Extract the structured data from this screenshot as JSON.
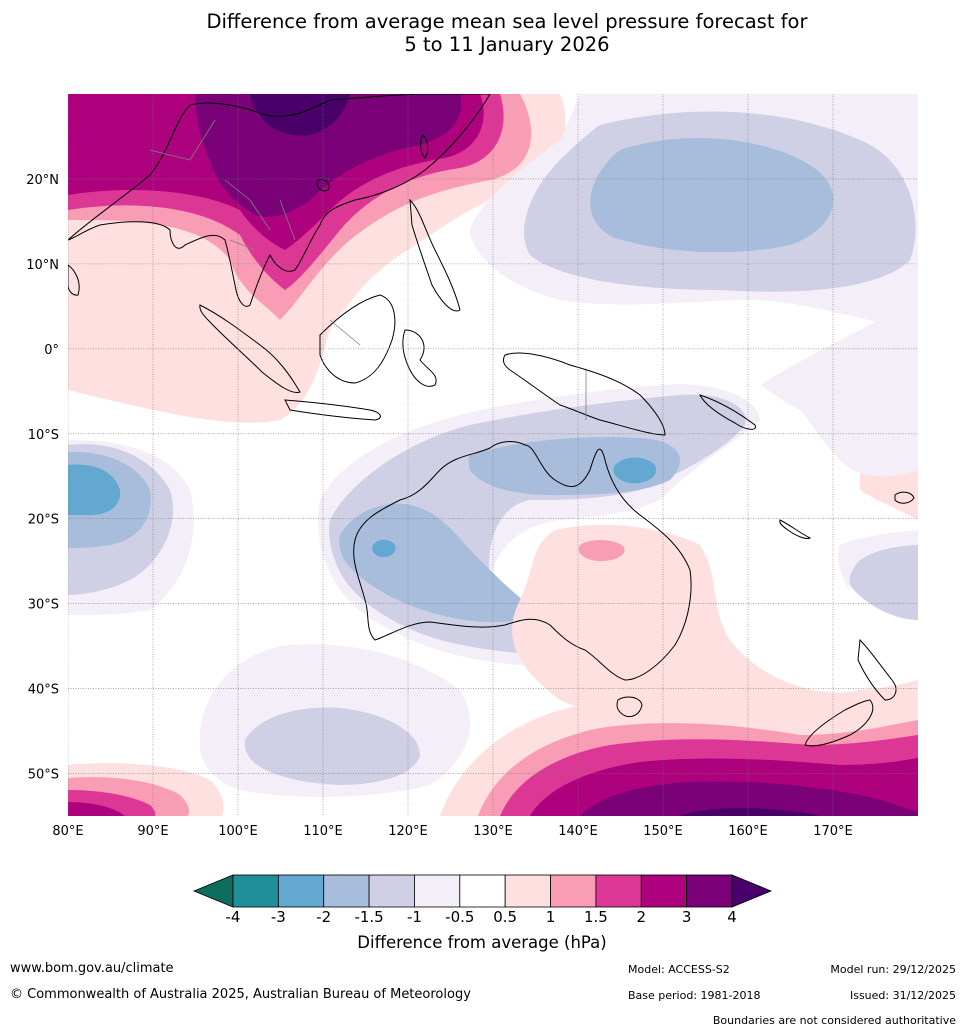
{
  "title": {
    "line1": "Difference from average mean sea level pressure forecast for",
    "line2": "5 to 11 January 2026"
  },
  "map": {
    "lon_labels": [
      "80°E",
      "90°E",
      "100°E",
      "110°E",
      "120°E",
      "130°E",
      "140°E",
      "150°E",
      "160°E",
      "170°E"
    ],
    "lat_labels": [
      "20°N",
      "10°N",
      "0°",
      "10°S",
      "20°S",
      "30°S",
      "40°S",
      "50°S"
    ],
    "lon_range": [
      80,
      180
    ],
    "lat_range": [
      -55,
      30
    ],
    "note": "Boundaries are not considered authoritative"
  },
  "colorbar": {
    "label": "Difference from average (hPa)",
    "tick_labels": [
      "-4",
      "-3",
      "-2",
      "-1.5",
      "-1",
      "-0.5",
      "0.5",
      "1",
      "1.5",
      "2",
      "3",
      "4"
    ],
    "colors": {
      "below_min": "#0d6e5d",
      "bins": [
        "#1f8f99",
        "#63a8d0",
        "#a8bddb",
        "#cfd0e6",
        "#f3eef7",
        "#ffffff",
        "#fde0df",
        "#f99cb6",
        "#dd3796",
        "#ad017e",
        "#7a0177"
      ],
      "above_max": "#4a006a"
    }
  },
  "footer": {
    "website": "www.bom.gov.au/climate",
    "copyright": "© Commonwealth of Australia 2025, Australian Bureau of Meteorology",
    "model": "Model: ACCESS-S2",
    "base_period": "Base period: 1981-2018",
    "model_run": "Model run: 29/12/2025",
    "issued": "Issued: 31/12/2025",
    "disclaimer": "Boundaries are not considered authoritative"
  }
}
